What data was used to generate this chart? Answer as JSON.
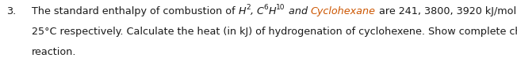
{
  "background_color": "#ffffff",
  "figsize": [
    6.52,
    0.83
  ],
  "dpi": 100,
  "text_color": "#1a1a1a",
  "orange_color": "#cc5500",
  "font_size": 9.2,
  "sub_font_size": 6.5,
  "number_text": "3.",
  "line2": "25°C respectively. Calculate the heat (in kJ) of hydrogenation of cyclohexene. Show complete chemical",
  "line3": "reaction."
}
